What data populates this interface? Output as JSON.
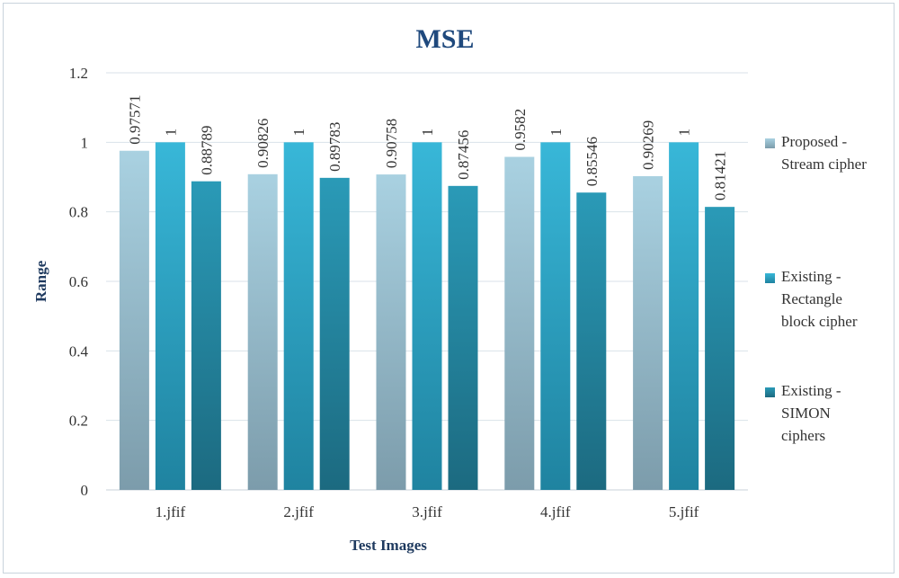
{
  "chart_data": {
    "type": "bar",
    "title": "MSE",
    "xlabel": "Test Images",
    "ylabel": "Range",
    "ylim": [
      0,
      1.2
    ],
    "yticks": [
      "0",
      "0.2",
      "0.4",
      "0.6",
      "0.8",
      "1",
      "1.2"
    ],
    "categories": [
      "1.jfif",
      "2.jfif",
      "3.jfif",
      "4.jfif",
      "5.jfif"
    ],
    "grid": true,
    "legend_position": "right",
    "series": [
      {
        "name_lines": [
          "Proposed -",
          "Stream cipher"
        ],
        "values": [
          0.97571,
          0.90826,
          0.90758,
          0.9582,
          0.90269
        ],
        "labels": [
          "0.97571",
          "0.90826",
          "0.90758",
          "0.9582",
          "0.90269"
        ],
        "color_top": "#a9d1e1",
        "color_bottom": "#7c9cab"
      },
      {
        "name_lines": [
          "Existing -",
          "Rectangle",
          "block cipher"
        ],
        "values": [
          1,
          1,
          1,
          1,
          1
        ],
        "labels": [
          "1",
          "1",
          "1",
          "1",
          "1"
        ],
        "color_top": "#38b7d8",
        "color_bottom": "#1f83a0"
      },
      {
        "name_lines": [
          "Existing -",
          "SIMON",
          "ciphers"
        ],
        "values": [
          0.88789,
          0.89783,
          0.87456,
          0.85546,
          0.81421
        ],
        "labels": [
          "0.88789",
          "0.89783",
          "0.87456",
          "0.85546",
          "0.81421"
        ],
        "color_top": "#2a9ab7",
        "color_bottom": "#1c6a80"
      }
    ]
  }
}
